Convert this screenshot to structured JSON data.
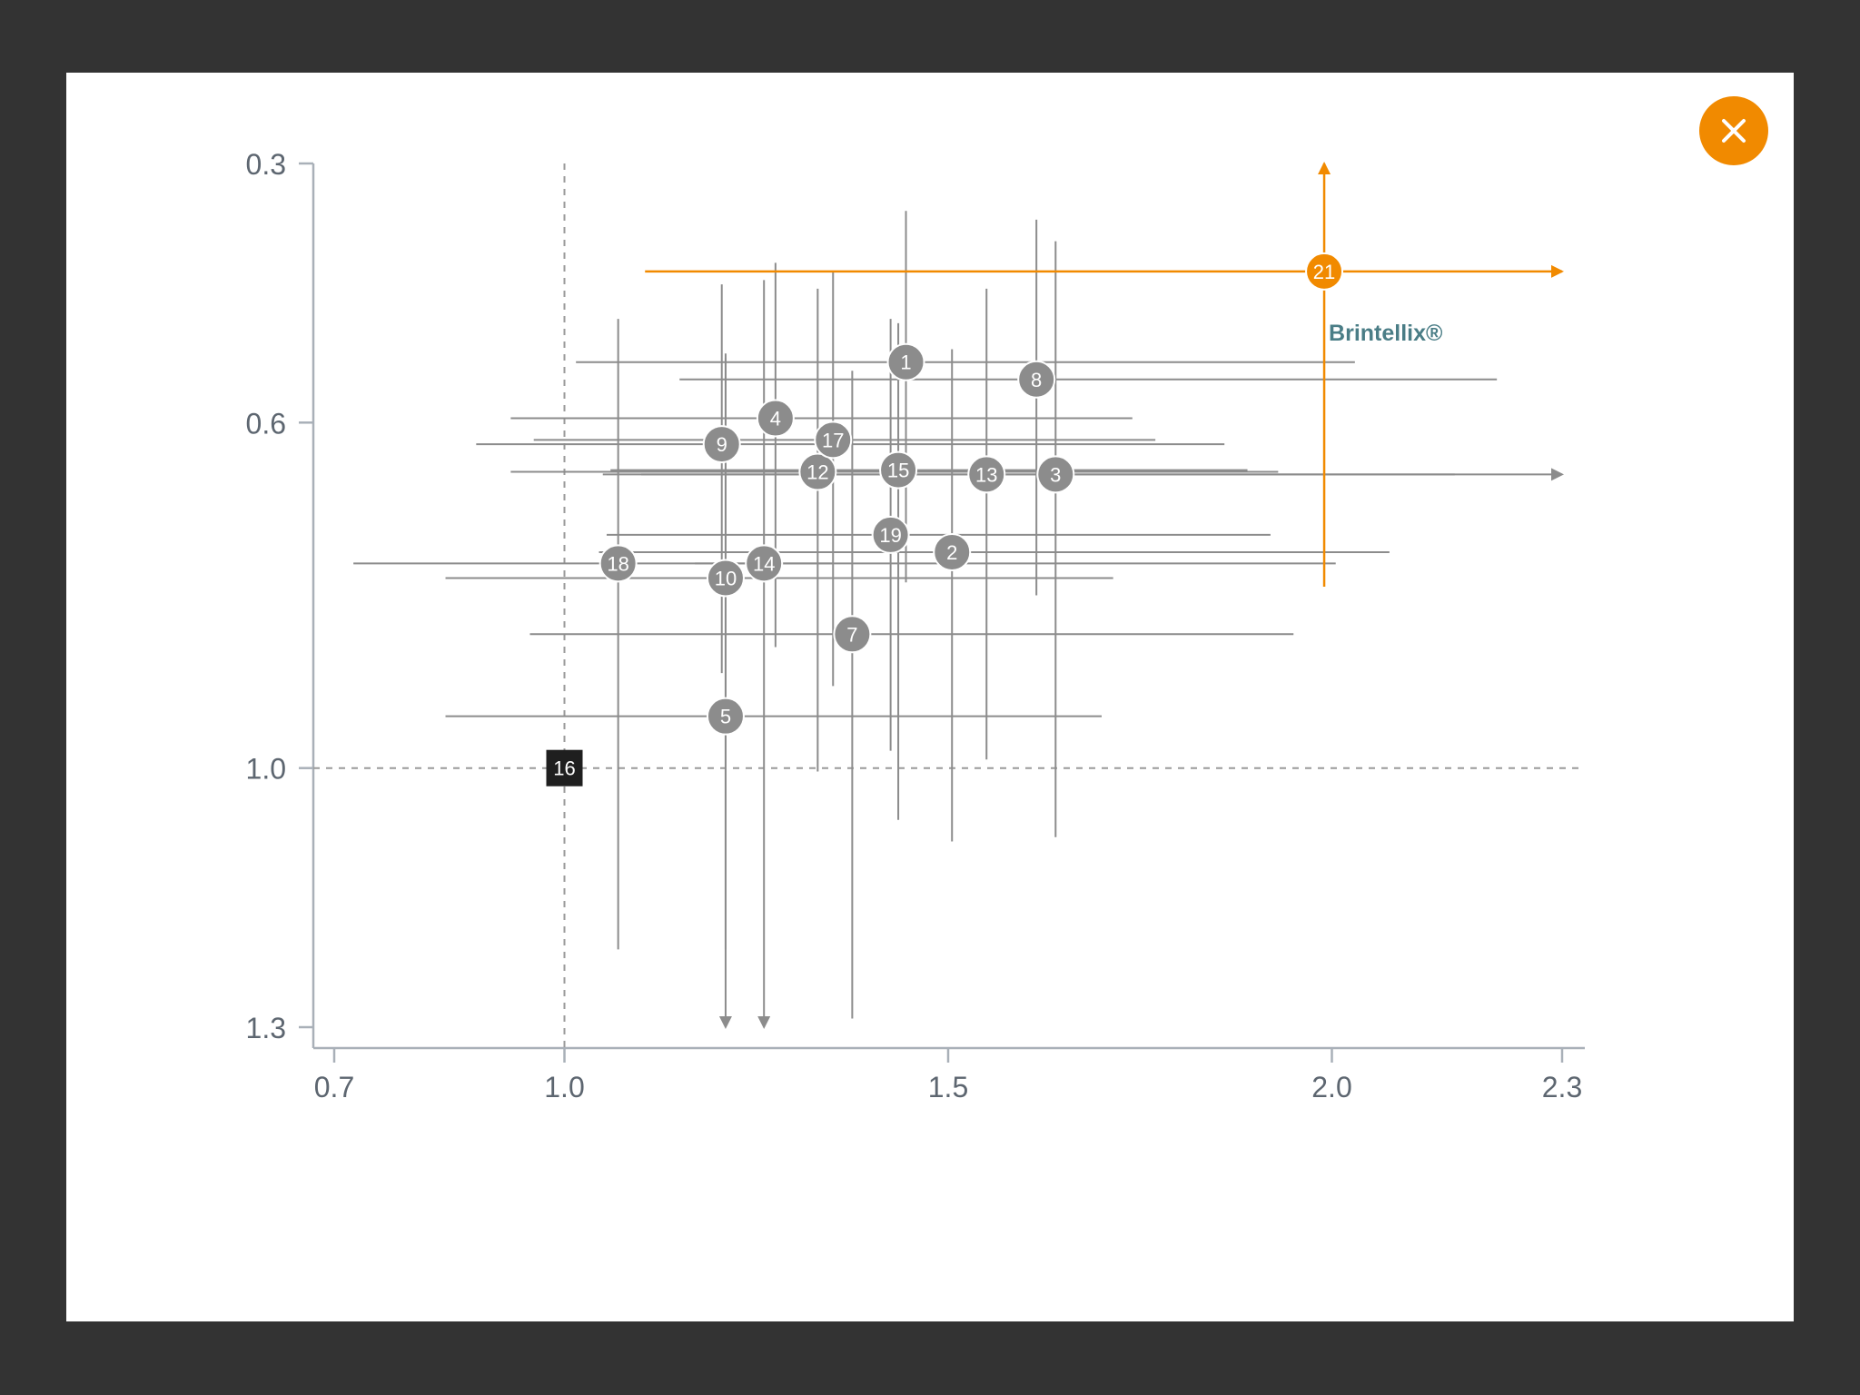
{
  "close_button": {
    "label": "×",
    "icon": "close-icon",
    "color": "#f18a00"
  },
  "colors": {
    "point": "#8c8c8c",
    "highlight": "#f18a00",
    "reference": "#1f1f1f",
    "axis": "#a9b0b8",
    "tick_label": "#5d6670",
    "annotation": "#4a7d86"
  },
  "chart_data": {
    "type": "scatter",
    "title": "",
    "xlabel": "",
    "ylabel": "",
    "xlim": [
      0.67,
      2.32
    ],
    "ylim": [
      0.3,
      1.32
    ],
    "y_inverted": true,
    "x_ticks": [
      0.7,
      1.0,
      1.5,
      2.0,
      2.3
    ],
    "x_tick_labels": [
      "0.7",
      "1.0",
      "1.5",
      "2.0",
      "2.3"
    ],
    "y_ticks": [
      0.3,
      0.6,
      1.0,
      1.3
    ],
    "y_tick_labels": [
      "0.3",
      "0.6",
      "1.0",
      "1.3"
    ],
    "reference_lines": {
      "x": 1.0,
      "y": 1.0,
      "style": "dashed"
    },
    "grid": false,
    "annotations": [
      {
        "text": "Brintellix®",
        "attached_to": "21"
      }
    ],
    "points": [
      {
        "label": "1",
        "x": 1.445,
        "y": 0.53,
        "x_low": 1.015,
        "x_high": 2.03,
        "y_low": 0.355,
        "y_high": 0.785,
        "kind": "comparator"
      },
      {
        "label": "2",
        "x": 1.505,
        "y": 0.75,
        "x_low": 1.045,
        "x_high": 2.075,
        "y_low": 0.515,
        "y_high": 1.085,
        "kind": "comparator"
      },
      {
        "label": "3",
        "x": 1.64,
        "y": 0.66,
        "x_low": 1.05,
        "x_high": 2.3,
        "y_low": 0.39,
        "y_high": 1.08,
        "kind": "comparator",
        "arrow_x": true
      },
      {
        "label": "4",
        "x": 1.275,
        "y": 0.595,
        "x_low": 0.93,
        "x_high": 1.74,
        "y_low": 0.415,
        "y_high": 0.86,
        "kind": "comparator"
      },
      {
        "label": "5",
        "x": 1.21,
        "y": 0.94,
        "x_low": 0.845,
        "x_high": 1.7,
        "y_low": 0.525,
        "y_high": 1.3,
        "kind": "comparator",
        "arrow_y": true
      },
      {
        "label": "7",
        "x": 1.375,
        "y": 0.845,
        "x_low": 0.955,
        "x_high": 1.95,
        "y_low": 0.54,
        "y_high": 1.29,
        "kind": "comparator"
      },
      {
        "label": "8",
        "x": 1.615,
        "y": 0.55,
        "x_low": 1.15,
        "x_high": 2.215,
        "y_low": 0.365,
        "y_high": 0.8,
        "kind": "comparator"
      },
      {
        "label": "9",
        "x": 1.205,
        "y": 0.625,
        "x_low": 0.885,
        "x_high": 1.86,
        "y_low": 0.44,
        "y_high": 0.89,
        "kind": "comparator"
      },
      {
        "label": "10",
        "x": 1.21,
        "y": 0.78,
        "x_low": 0.845,
        "x_high": 1.715,
        "y_low": 0.52,
        "y_high": 1.21,
        "kind": "comparator"
      },
      {
        "label": "12",
        "x": 1.33,
        "y": 0.657,
        "x_low": 0.93,
        "x_high": 1.93,
        "y_low": 0.445,
        "y_high": 1.004,
        "kind": "comparator"
      },
      {
        "label": "13",
        "x": 1.55,
        "y": 0.66,
        "x_low": 1.1,
        "x_high": 2.16,
        "y_low": 0.445,
        "y_high": 0.99,
        "kind": "comparator"
      },
      {
        "label": "14",
        "x": 1.26,
        "y": 0.763,
        "x_low": 1.17,
        "x_high": 1.35,
        "y_low": 0.435,
        "y_high": 1.3,
        "kind": "comparator",
        "arrow_y": true
      },
      {
        "label": "15",
        "x": 1.435,
        "y": 0.655,
        "x_low": 1.06,
        "x_high": 1.89,
        "y_low": 0.485,
        "y_high": 1.06,
        "kind": "comparator"
      },
      {
        "label": "16",
        "x": 1.0,
        "y": 1.0,
        "kind": "reference"
      },
      {
        "label": "17",
        "x": 1.35,
        "y": 0.62,
        "x_low": 0.96,
        "x_high": 1.77,
        "y_low": 0.425,
        "y_high": 0.905,
        "kind": "comparator"
      },
      {
        "label": "18",
        "x": 1.07,
        "y": 0.763,
        "x_low": 0.725,
        "x_high": 2.005,
        "y_low": 0.48,
        "y_high": 1.21,
        "kind": "comparator"
      },
      {
        "label": "19",
        "x": 1.425,
        "y": 0.73,
        "x_low": 1.055,
        "x_high": 1.92,
        "y_low": 0.48,
        "y_high": 0.98,
        "kind": "comparator"
      },
      {
        "label": "21",
        "x": 1.99,
        "y": 0.425,
        "x_low": 1.105,
        "x_high": 2.3,
        "y_low": 0.3,
        "y_high": 0.79,
        "kind": "highlight",
        "arrow_x": true,
        "arrow_y_up": true
      }
    ]
  }
}
